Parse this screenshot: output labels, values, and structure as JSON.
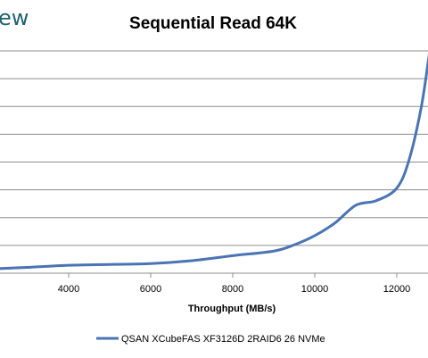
{
  "logo": {
    "text": "ew"
  },
  "chart_data": {
    "type": "line",
    "title": "Sequential Read 64K",
    "xlabel": "Throughput (MB/s)",
    "ylabel": "",
    "x_ticks": [
      4000,
      6000,
      8000,
      10000,
      12000
    ],
    "grid": true,
    "legend_position": "bottom",
    "series": [
      {
        "name": "QSAN XCubeFAS XF3126D 2RAID6 26 NVMe",
        "color": "#4a74b3",
        "points": [
          [
            2300,
            0.55
          ],
          [
            3000,
            0.7
          ],
          [
            4000,
            0.95
          ],
          [
            5000,
            1.05
          ],
          [
            6000,
            1.15
          ],
          [
            7000,
            1.5
          ],
          [
            8000,
            2.1
          ],
          [
            9000,
            2.65
          ],
          [
            9500,
            3.4
          ],
          [
            10000,
            4.5
          ],
          [
            10500,
            6.05
          ],
          [
            11000,
            8.15
          ],
          [
            11500,
            8.7
          ],
          [
            12000,
            10.2
          ],
          [
            12300,
            13.6
          ],
          [
            12600,
            20.0
          ],
          [
            12800,
            26.6
          ]
        ]
      }
    ]
  },
  "colors": {
    "grid": "#8c8c8c",
    "axis": "#8c8c8c",
    "logo": "#1f6470"
  }
}
